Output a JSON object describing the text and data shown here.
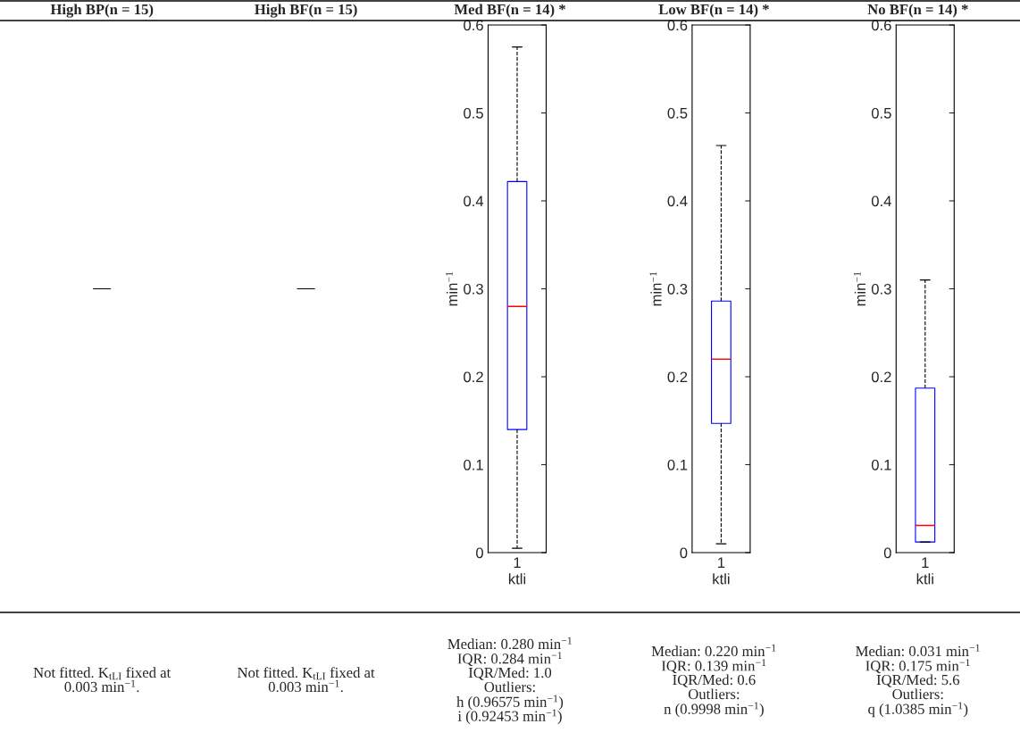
{
  "chart_data": [
    {
      "type": "other",
      "title": "High BP(n = 15)",
      "annotations": [
        "Not fitted. K$_{tLI}$ fixed at",
        "0.003 min$^{−1}$."
      ]
    },
    {
      "type": "other",
      "title": "High BF(n = 15)",
      "annotations": [
        "Not fitted. K$_{tLI}$ fixed at",
        "0.003 min$^{−1}$."
      ]
    },
    {
      "type": "box",
      "title": "Med BF(n = 14) *",
      "categories": [
        "1"
      ],
      "xlabel": "ktli",
      "ylabel": "min$^{−1}$",
      "ylim": [
        0,
        0.6
      ],
      "yticks": [
        0,
        0.1,
        0.2,
        0.3,
        0.4,
        0.5,
        0.6
      ],
      "series": [
        {
          "color": "#0000ff",
          "boxes": [
            {
              "low": 0.005,
              "q1": 0.14,
              "median": 0.28,
              "q3": 0.422,
              "high": 0.575
            }
          ]
        }
      ],
      "annotations": [
        "Median: 0.280 min$^{−1}$",
        "IQR: 0.284 min$^{−1}$",
        "IQR/Med: 1.0",
        "Outliers:",
        "h (0.96575 min$^{−1}$)",
        "i (0.92453 min$^{−1}$)"
      ]
    },
    {
      "type": "box",
      "title": "Low BF(n = 14) *",
      "categories": [
        "1"
      ],
      "xlabel": "ktli",
      "ylabel": "min$^{−1}$",
      "ylim": [
        0,
        0.6
      ],
      "yticks": [
        0,
        0.1,
        0.2,
        0.3,
        0.4,
        0.5,
        0.6
      ],
      "series": [
        {
          "color": "#0000ff",
          "boxes": [
            {
              "low": 0.01,
              "q1": 0.147,
              "median": 0.22,
              "q3": 0.286,
              "high": 0.463
            }
          ]
        }
      ],
      "annotations": [
        "Median: 0.220 min$^{−1}$",
        "IQR: 0.139 min$^{−1}$",
        "IQR/Med: 0.6",
        "Outliers:",
        "n (0.9998 min$^{−1}$)"
      ]
    },
    {
      "type": "box",
      "title": "No BF(n = 14) *",
      "categories": [
        "1"
      ],
      "xlabel": "ktli",
      "ylabel": "min$^{−1}$",
      "ylim": [
        0,
        0.6
      ],
      "yticks": [
        0,
        0.1,
        0.2,
        0.3,
        0.4,
        0.5,
        0.6
      ],
      "series": [
        {
          "color": "#0000ff",
          "boxes": [
            {
              "low": 0.012,
              "q1": 0.012,
              "median": 0.031,
              "q3": 0.187,
              "high": 0.31
            }
          ]
        }
      ],
      "annotations": [
        "Median: 0.031 min$^{−1}$",
        "IQR: 0.175 min$^{−1}$",
        "IQR/Med: 5.6",
        "Outliers:",
        "q (1.0385 min$^{−1}$)"
      ]
    }
  ]
}
